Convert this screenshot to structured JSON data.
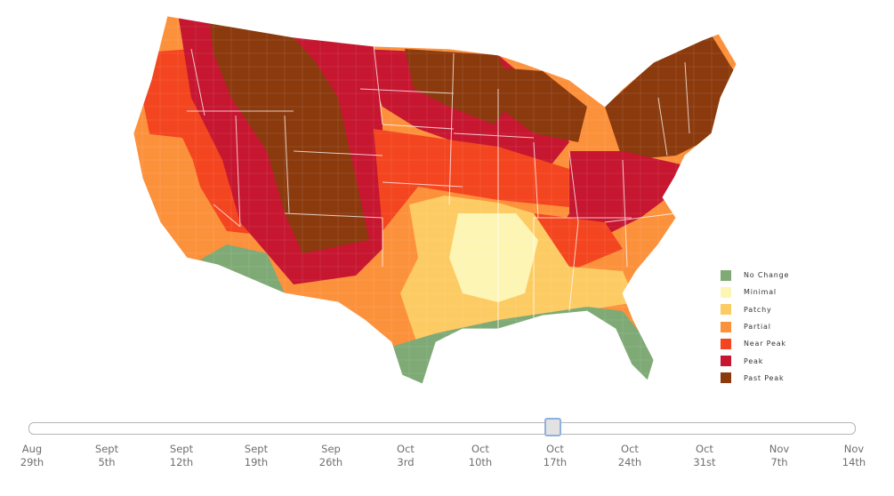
{
  "map": {
    "region": "continental-united-states",
    "colors": {
      "no_change": "#7faa76",
      "minimal": "#fdf5b4",
      "patchy": "#fdcb63",
      "partial": "#fc913c",
      "near_peak": "#f3451f",
      "peak": "#c61630",
      "past_peak": "#8b3a0e"
    }
  },
  "legend": {
    "items": [
      {
        "label": "No Change",
        "color": "#7faa76"
      },
      {
        "label": "Minimal",
        "color": "#fdf5b4"
      },
      {
        "label": "Patchy",
        "color": "#fdcb63"
      },
      {
        "label": "Partial",
        "color": "#fc913c"
      },
      {
        "label": "Near Peak",
        "color": "#f3451f"
      },
      {
        "label": "Peak",
        "color": "#c61630"
      },
      {
        "label": "Past Peak",
        "color": "#8b3a0e"
      }
    ]
  },
  "timeline": {
    "selected_index": 7,
    "ticks": [
      {
        "month": "Aug",
        "day": "29th"
      },
      {
        "month": "Sept",
        "day": "5th"
      },
      {
        "month": "Sept",
        "day": "12th"
      },
      {
        "month": "Sept",
        "day": "19th"
      },
      {
        "month": "Sep",
        "day": "26th"
      },
      {
        "month": "Oct",
        "day": "3rd"
      },
      {
        "month": "Oct",
        "day": "10th"
      },
      {
        "month": "Oct",
        "day": "17th"
      },
      {
        "month": "Oct",
        "day": "24th"
      },
      {
        "month": "Oct",
        "day": "31st"
      },
      {
        "month": "Nov",
        "day": "7th"
      },
      {
        "month": "Nov",
        "day": "14th"
      }
    ]
  }
}
